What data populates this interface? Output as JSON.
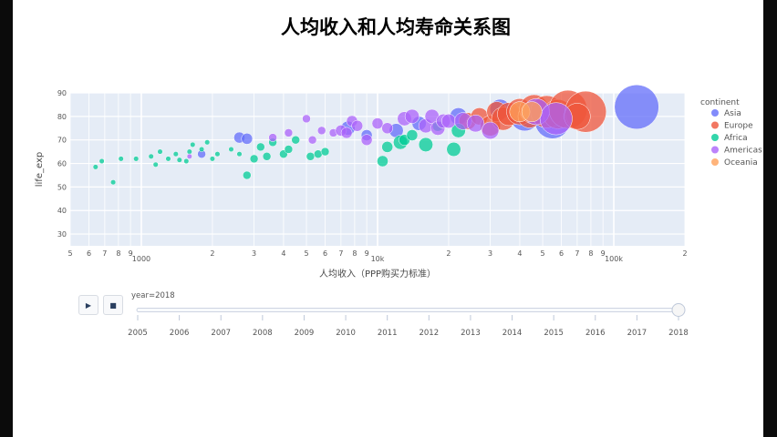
{
  "chart_data": {
    "type": "scatter",
    "title": "人均收入和人均寿命关系图",
    "xlabel": "人均收入（PPP购买力标准）",
    "ylabel": "life_exp",
    "xscale": "log",
    "xlim": [
      500,
      200000
    ],
    "ylim": [
      25,
      90
    ],
    "grid": true,
    "x_major_ticks": [
      {
        "value": 1000,
        "label": "1000"
      },
      {
        "value": 10000,
        "label": "10k"
      },
      {
        "value": 100000,
        "label": "100k"
      }
    ],
    "x_minor_ticks": [
      {
        "value": 500,
        "label": "5"
      },
      {
        "value": 600,
        "label": "6"
      },
      {
        "value": 700,
        "label": "7"
      },
      {
        "value": 800,
        "label": "8"
      },
      {
        "value": 900,
        "label": "9"
      },
      {
        "value": 2000,
        "label": "2"
      },
      {
        "value": 3000,
        "label": "3"
      },
      {
        "value": 4000,
        "label": "4"
      },
      {
        "value": 5000,
        "label": "5"
      },
      {
        "value": 6000,
        "label": "6"
      },
      {
        "value": 7000,
        "label": "7"
      },
      {
        "value": 8000,
        "label": "8"
      },
      {
        "value": 9000,
        "label": "9"
      },
      {
        "value": 20000,
        "label": "2"
      },
      {
        "value": 30000,
        "label": "3"
      },
      {
        "value": 40000,
        "label": "4"
      },
      {
        "value": 50000,
        "label": "5"
      },
      {
        "value": 60000,
        "label": "6"
      },
      {
        "value": 70000,
        "label": "7"
      },
      {
        "value": 80000,
        "label": "8"
      },
      {
        "value": 90000,
        "label": "9"
      },
      {
        "value": 200000,
        "label": "2"
      }
    ],
    "y_ticks": [
      30,
      40,
      50,
      60,
      70,
      80,
      90
    ],
    "legend": {
      "title": "continent",
      "placement": "right"
    },
    "series": [
      {
        "name": "Asia",
        "color": "#636efa",
        "points": [
          [
            2600,
            71,
            3
          ],
          [
            2800,
            70.5,
            3
          ],
          [
            1800,
            64,
            2
          ],
          [
            7500,
            75,
            4
          ],
          [
            9000,
            72,
            3
          ],
          [
            12000,
            74,
            4
          ],
          [
            15000,
            77,
            4
          ],
          [
            22000,
            80,
            5
          ],
          [
            33000,
            83,
            6
          ],
          [
            42000,
            80,
            9
          ],
          [
            48000,
            82,
            7
          ],
          [
            55000,
            78,
            11
          ],
          [
            125000,
            84,
            14
          ]
        ]
      },
      {
        "name": "Europe",
        "color": "#ef553b",
        "points": [
          [
            24000,
            78,
            5
          ],
          [
            27000,
            80,
            5
          ],
          [
            30000,
            76,
            6
          ],
          [
            32000,
            82,
            6
          ],
          [
            34000,
            79,
            7
          ],
          [
            36000,
            81,
            7
          ],
          [
            40000,
            82,
            8
          ],
          [
            44000,
            80,
            7
          ],
          [
            46000,
            83,
            9
          ],
          [
            52000,
            82,
            10
          ],
          [
            58000,
            81,
            9
          ],
          [
            64000,
            83,
            12
          ],
          [
            76000,
            82,
            13
          ],
          [
            70000,
            80,
            8
          ]
        ]
      },
      {
        "name": "Africa",
        "color": "#00cc96",
        "points": [
          [
            640,
            58.5,
            1
          ],
          [
            680,
            61,
            1
          ],
          [
            760,
            52,
            1
          ],
          [
            820,
            62,
            1
          ],
          [
            950,
            62,
            1
          ],
          [
            1100,
            63,
            1
          ],
          [
            1150,
            59.5,
            1
          ],
          [
            1200,
            65,
            1
          ],
          [
            1300,
            62,
            1
          ],
          [
            1400,
            64,
            1
          ],
          [
            1450,
            61.5,
            1
          ],
          [
            1550,
            61,
            1
          ],
          [
            1600,
            65,
            1
          ],
          [
            1650,
            68,
            1
          ],
          [
            1800,
            66,
            1
          ],
          [
            1900,
            69,
            1
          ],
          [
            2000,
            62,
            1
          ],
          [
            2100,
            64,
            1
          ],
          [
            2400,
            66,
            1
          ],
          [
            2600,
            64,
            1
          ],
          [
            2800,
            55,
            2
          ],
          [
            3000,
            62,
            2
          ],
          [
            3200,
            67,
            2
          ],
          [
            3400,
            63,
            2
          ],
          [
            3600,
            69,
            2
          ],
          [
            4000,
            64,
            2
          ],
          [
            4200,
            66,
            2
          ],
          [
            4500,
            70,
            2
          ],
          [
            5200,
            63,
            2
          ],
          [
            5600,
            64,
            2
          ],
          [
            6000,
            65,
            2
          ],
          [
            10500,
            61,
            3
          ],
          [
            11000,
            67,
            3
          ],
          [
            12500,
            69,
            4
          ],
          [
            13000,
            70,
            3
          ],
          [
            14000,
            72,
            3
          ],
          [
            16000,
            68,
            4
          ],
          [
            18000,
            76,
            3
          ],
          [
            21000,
            66,
            4
          ],
          [
            22000,
            74,
            4
          ]
        ]
      },
      {
        "name": "Americas",
        "color": "#ab63fa",
        "points": [
          [
            1600,
            63,
            1
          ],
          [
            3600,
            71,
            2
          ],
          [
            4200,
            73,
            2
          ],
          [
            5000,
            79,
            2
          ],
          [
            5300,
            70,
            2
          ],
          [
            5800,
            74,
            2
          ],
          [
            6500,
            73,
            2
          ],
          [
            7000,
            74,
            3
          ],
          [
            7400,
            73,
            3
          ],
          [
            7800,
            78,
            3
          ],
          [
            8200,
            76,
            3
          ],
          [
            9000,
            70,
            3
          ],
          [
            10000,
            77,
            3
          ],
          [
            11000,
            75,
            3
          ],
          [
            13000,
            79,
            4
          ],
          [
            14000,
            80,
            4
          ],
          [
            16000,
            76,
            4
          ],
          [
            17000,
            80,
            4
          ],
          [
            18000,
            75,
            4
          ],
          [
            19000,
            78,
            4
          ],
          [
            20000,
            78,
            4
          ],
          [
            23000,
            78,
            5
          ],
          [
            26000,
            77,
            5
          ],
          [
            30000,
            74,
            5
          ],
          [
            47000,
            82,
            8
          ],
          [
            57000,
            79,
            10
          ]
        ]
      },
      {
        "name": "Oceania",
        "color": "#ffa15a",
        "points": [
          [
            40000,
            82,
            6
          ],
          [
            45000,
            82,
            6
          ]
        ]
      }
    ]
  },
  "slider": {
    "current_label": "year=2018",
    "years": [
      "2005",
      "2006",
      "2007",
      "2008",
      "2009",
      "2010",
      "2011",
      "2012",
      "2013",
      "2014",
      "2015",
      "2016",
      "2017",
      "2018"
    ],
    "value": "2018"
  },
  "controls": {
    "play_icon": "▶",
    "stop_icon": "■"
  }
}
